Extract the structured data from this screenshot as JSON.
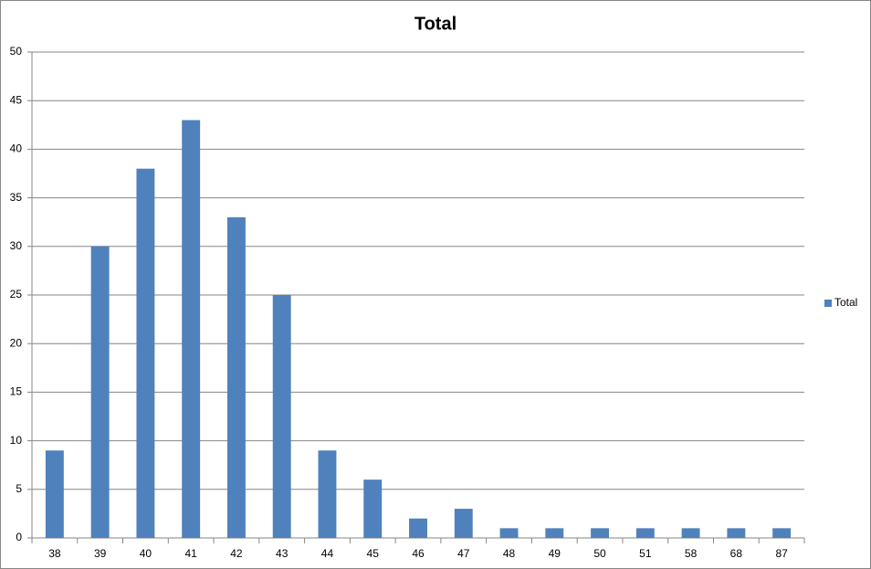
{
  "chart_data": {
    "type": "bar",
    "title": "Total",
    "categories": [
      "38",
      "39",
      "40",
      "41",
      "42",
      "43",
      "44",
      "45",
      "46",
      "47",
      "48",
      "49",
      "50",
      "51",
      "58",
      "68",
      "87"
    ],
    "series": [
      {
        "name": "Total",
        "color": "#4f81bd",
        "values": [
          9,
          30,
          38,
          43,
          33,
          25,
          9,
          6,
          2,
          3,
          1,
          1,
          1,
          1,
          1,
          1,
          1
        ]
      }
    ],
    "ylim": [
      0,
      50
    ],
    "yticks": [
      0,
      5,
      10,
      15,
      20,
      25,
      30,
      35,
      40,
      45,
      50
    ],
    "grid": true,
    "legend": "right"
  }
}
